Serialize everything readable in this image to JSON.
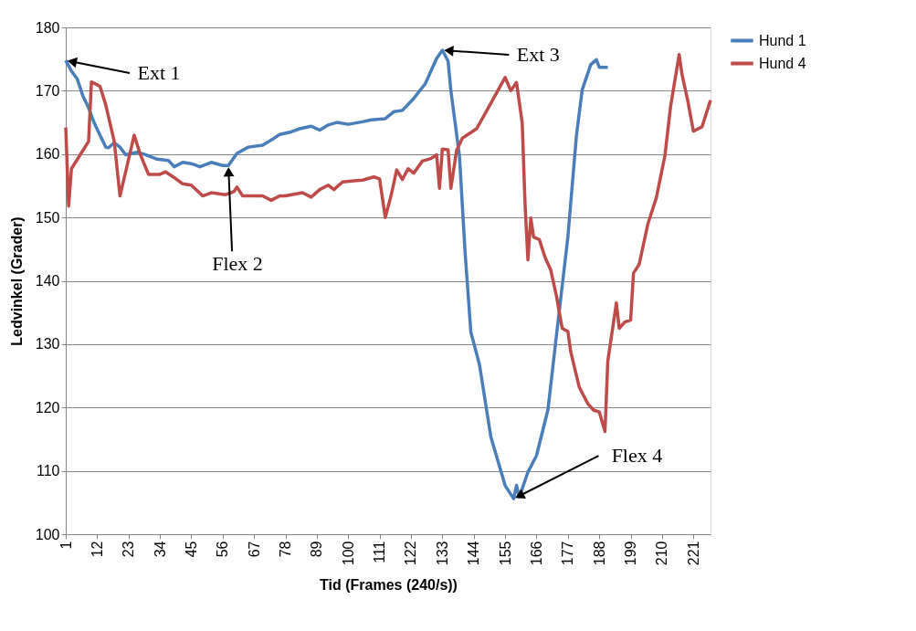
{
  "chart_data": {
    "type": "line",
    "xlabel": "Tid (Frames (240/s))",
    "ylabel": "Ledvinkel (Grader)",
    "xlim": [
      1,
      227
    ],
    "xticks": [
      1,
      12,
      23,
      34,
      45,
      56,
      67,
      78,
      89,
      100,
      111,
      122,
      133,
      144,
      155,
      166,
      177,
      188,
      199,
      210,
      221
    ],
    "ylim": [
      100,
      180
    ],
    "yticks": [
      100,
      110,
      120,
      130,
      140,
      150,
      160,
      170,
      180
    ],
    "grid": "y",
    "legend": "right",
    "marker": "none",
    "line_style": "solid",
    "series": [
      {
        "name": "Hund 1",
        "color": "#4a7ebb",
        "x": [
          1,
          3,
          5,
          7,
          9,
          11,
          13,
          15,
          16,
          18,
          20,
          22,
          26,
          29,
          33,
          37,
          39,
          42,
          45,
          48,
          52,
          56,
          58,
          61,
          65,
          70,
          74,
          76,
          80,
          83,
          87,
          90,
          93,
          96,
          100,
          105,
          108,
          113,
          116,
          119,
          123,
          127,
          131,
          133,
          135,
          136,
          139,
          141,
          143,
          146,
          150,
          155,
          158,
          159,
          160,
          163,
          166,
          170,
          173,
          177,
          180,
          182,
          185,
          187,
          188,
          191
        ],
        "values": [
          174.8,
          173.1,
          171.9,
          169.2,
          167.3,
          164.9,
          163,
          161.1,
          161,
          161.8,
          161.1,
          159.9,
          160.3,
          159.9,
          159.2,
          159,
          158,
          158.7,
          158.5,
          158,
          158.7,
          158.2,
          158.2,
          160.1,
          161.1,
          161.4,
          162.5,
          163.1,
          163.5,
          164,
          164.4,
          163.8,
          164.6,
          165,
          164.7,
          165.1,
          165.4,
          165.6,
          166.7,
          166.9,
          168.8,
          171.1,
          175.1,
          176.4,
          174.7,
          170,
          159.7,
          144.3,
          131.9,
          126.8,
          115.4,
          107.7,
          105.6,
          107.7,
          105.9,
          109.8,
          112.4,
          119.6,
          131.4,
          146.9,
          162.9,
          170.1,
          174.1,
          174.9,
          173.7,
          173.7
        ]
      },
      {
        "name": "Hund 4",
        "color": "#be4b48",
        "x": [
          1,
          2,
          3,
          9,
          10,
          13,
          15,
          18,
          20,
          22,
          25,
          27,
          30,
          34,
          36,
          39,
          42,
          45,
          49,
          52,
          57,
          60,
          61,
          63,
          70,
          73,
          76,
          78,
          84,
          87,
          90,
          93,
          95,
          98,
          102,
          105,
          109,
          111,
          113,
          115,
          117,
          119,
          121,
          123,
          126,
          129,
          131,
          132,
          133,
          135,
          136,
          138,
          140,
          145,
          148,
          155,
          157,
          159,
          161,
          162,
          163,
          164,
          165,
          167,
          169,
          171,
          173,
          175,
          177,
          178,
          181,
          184,
          186,
          188,
          190,
          191,
          194,
          195,
          197,
          199,
          200,
          202,
          205,
          208,
          211,
          213,
          216,
          217,
          219,
          221,
          224,
          227
        ],
        "values": [
          164.2,
          151.8,
          157.7,
          162,
          171.4,
          170.7,
          167.8,
          162,
          153.4,
          157.2,
          163,
          160.1,
          156.8,
          156.8,
          157.2,
          156.3,
          155.3,
          155.1,
          153.4,
          153.9,
          153.6,
          154.1,
          154.8,
          153.4,
          153.4,
          152.7,
          153.4,
          153.4,
          153.9,
          153.2,
          154.4,
          155.1,
          154.4,
          155.6,
          155.8,
          155.9,
          156.4,
          156.1,
          150,
          153.4,
          157.5,
          156,
          157.7,
          157,
          158.9,
          159.3,
          159.9,
          154.6,
          160.8,
          160.7,
          154.6,
          160.6,
          162.5,
          164,
          166.4,
          172.1,
          170,
          171.3,
          164.9,
          152,
          143.3,
          149.9,
          146.9,
          146.5,
          143.7,
          141.7,
          137.6,
          132.5,
          132,
          128.8,
          123.2,
          120.6,
          119.6,
          119.3,
          116.2,
          127.3,
          136.5,
          132.5,
          133.5,
          133.8,
          141.2,
          142.6,
          148.9,
          153.1,
          159.7,
          167.5,
          175.7,
          172.6,
          168.5,
          163.6,
          164.3,
          168.5
        ]
      }
    ],
    "annotations": [
      {
        "text": "Ext 1",
        "x": 1,
        "y": 174.8
      },
      {
        "text": "Flex 2",
        "x": 58,
        "y": 158.2
      },
      {
        "text": "Ext 3",
        "x": 133,
        "y": 176.4
      },
      {
        "text": "Flex 4",
        "x": 158,
        "y": 105.6
      }
    ]
  }
}
